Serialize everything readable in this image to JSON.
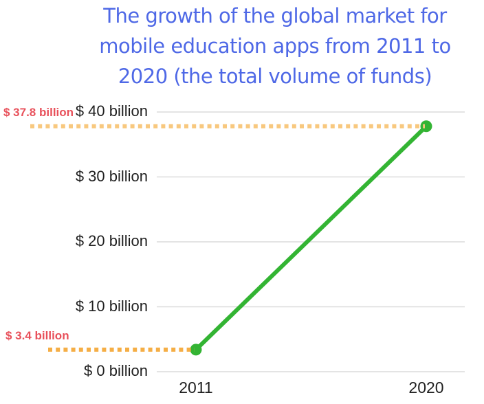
{
  "title": {
    "lines": [
      "The growth of the global market for",
      "mobile education apps from 2011 to",
      "2020 (the total volume of funds)"
    ],
    "color": "#4E68E6"
  },
  "chart_data": {
    "type": "line",
    "title": "The growth of the global market for mobile education apps from 2011 to 2020 (the total volume of funds)",
    "categories": [
      "2011",
      "2020"
    ],
    "values": [
      3.4,
      37.8
    ],
    "series": [
      {
        "name": "total volume of funds ($ billion)",
        "values": [
          3.4,
          37.8
        ]
      }
    ],
    "unit": "$ billion",
    "ylim": [
      0,
      40
    ],
    "ytick_values": [
      0,
      10,
      20,
      30,
      40
    ],
    "ytick_labels": [
      "$ 0 billion",
      "$ 10 billion",
      "$ 20 billion",
      "$ 30 billion",
      "$ 40 billion"
    ],
    "xlabel": "",
    "ylabel": "",
    "grid": true,
    "legend": "none",
    "annotations": [
      {
        "text": "$ 37.8 billion",
        "value": 37.8
      },
      {
        "text": "$ 3.4 billion",
        "value": 3.4
      }
    ],
    "colors": {
      "line": "#33B433",
      "marker": "#33B433",
      "grid": "#DCDCDC",
      "annotation_text": "#E8505A",
      "annotation_line_top": "#F8C87E",
      "annotation_line_bottom": "#F5AE45",
      "title": "#4E68E6",
      "axis_text": "#1F1F1F"
    }
  }
}
